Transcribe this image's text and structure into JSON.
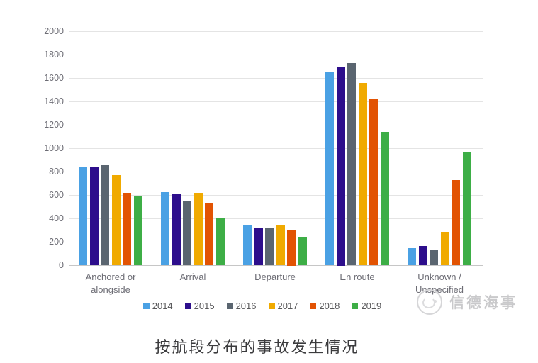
{
  "chart_data": {
    "type": "bar",
    "categories": [
      "Anchored or alongside",
      "Arrival",
      "Departure",
      "En route",
      "Unknown / Unspecified"
    ],
    "series": [
      {
        "name": "2014",
        "color": "#4AA1E4",
        "values": [
          840,
          625,
          345,
          1650,
          145
        ]
      },
      {
        "name": "2015",
        "color": "#2D0E8C",
        "values": [
          845,
          615,
          320,
          1700,
          165
        ]
      },
      {
        "name": "2016",
        "color": "#5A6570",
        "values": [
          855,
          550,
          320,
          1730,
          130
        ]
      },
      {
        "name": "2017",
        "color": "#F0AA00",
        "values": [
          770,
          620,
          340,
          1560,
          285
        ]
      },
      {
        "name": "2018",
        "color": "#E25303",
        "values": [
          620,
          530,
          300,
          1420,
          730
        ]
      },
      {
        "name": "2019",
        "color": "#3DAE46",
        "values": [
          590,
          405,
          245,
          1140,
          970
        ]
      }
    ],
    "title": "",
    "xlabel": "",
    "ylabel": "",
    "ylim": [
      0,
      2000
    ],
    "ytick_step": 200,
    "grid": true,
    "legend_position": "bottom"
  },
  "watermark": {
    "text": "信德海事"
  },
  "caption": {
    "text": "按航段分布的事故发生情况"
  }
}
